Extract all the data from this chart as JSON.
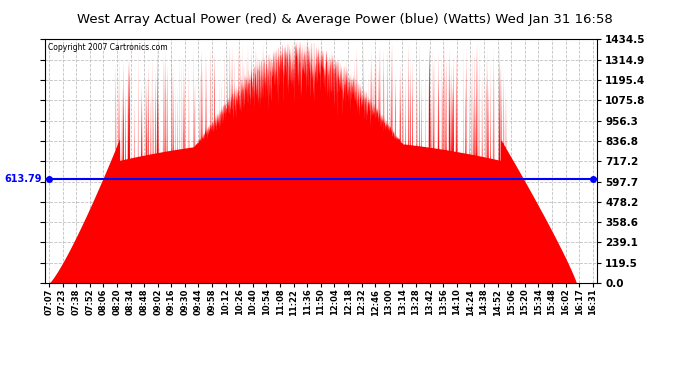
{
  "title": "West Array Actual Power (red) & Average Power (blue) (Watts) Wed Jan 31 16:58",
  "copyright": "Copyright 2007 Cartronics.com",
  "average_power": 613.79,
  "ymax": 1434.5,
  "ymin": 0.0,
  "yticks": [
    0.0,
    119.5,
    239.1,
    358.6,
    478.2,
    597.7,
    717.2,
    836.8,
    956.3,
    1075.8,
    1195.4,
    1314.9,
    1434.5
  ],
  "fill_color": "#FF0000",
  "line_color": "#0000FF",
  "bg_color": "#FFFFFF",
  "grid_color": "#BBBBBB",
  "x_labels": [
    "07:07",
    "07:23",
    "07:38",
    "07:52",
    "08:06",
    "08:20",
    "08:34",
    "08:48",
    "09:02",
    "09:16",
    "09:30",
    "09:44",
    "09:58",
    "10:12",
    "10:26",
    "10:40",
    "10:54",
    "11:08",
    "11:22",
    "11:36",
    "11:50",
    "12:04",
    "12:18",
    "12:32",
    "12:46",
    "13:00",
    "13:14",
    "13:28",
    "13:42",
    "13:56",
    "14:10",
    "14:24",
    "14:38",
    "14:52",
    "15:06",
    "15:20",
    "15:34",
    "15:48",
    "16:02",
    "16:17",
    "16:31"
  ]
}
